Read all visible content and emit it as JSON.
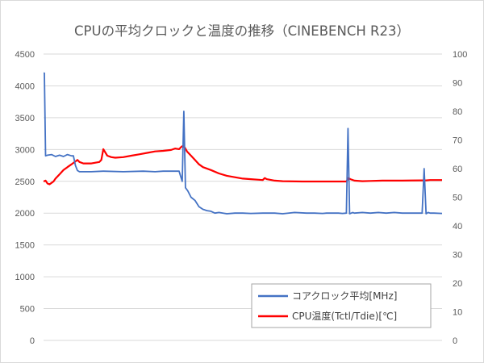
{
  "chart_data": {
    "type": "line",
    "title": "CPUの平均クロックと温度の推移（CINEBENCH R23）",
    "xlabel": "",
    "ylabel_left": "",
    "ylabel_right": "",
    "y_left": {
      "ylim": [
        0,
        4500
      ],
      "ticks": [
        "0",
        "500",
        "1000",
        "1500",
        "2000",
        "2500",
        "3000",
        "3500",
        "4000",
        "4500"
      ]
    },
    "y_right": {
      "ylim": [
        0,
        100
      ],
      "ticks": [
        "0",
        "10",
        "20",
        "30",
        "40",
        "50",
        "60",
        "70",
        "80",
        "90",
        "100"
      ]
    },
    "x_range": [
      0,
      100
    ],
    "grid": true,
    "legend_position": "bottom-right",
    "series": [
      {
        "name": "コアクロック平均[MHz]",
        "axis": "left",
        "color": "#4472c4",
        "x": [
          0,
          0.2,
          0.5,
          1,
          2,
          3,
          4,
          5,
          6,
          7,
          7.5,
          8,
          8.5,
          9,
          12,
          15,
          20,
          25,
          28,
          30,
          32,
          33,
          34,
          34.8,
          35.2,
          35.6,
          36.2,
          37,
          38,
          39,
          40,
          41,
          42,
          43,
          44,
          46,
          48,
          50,
          52,
          55,
          58,
          60,
          63,
          66,
          68,
          70,
          71,
          72,
          73,
          74,
          75,
          76,
          76.4,
          76.8,
          77.2,
          77.6,
          78,
          80,
          82,
          84,
          86,
          88,
          90,
          92,
          94,
          95,
          95.5,
          96,
          96.5,
          97,
          98,
          100
        ],
        "y": [
          4200,
          4200,
          2900,
          2910,
          2920,
          2890,
          2910,
          2890,
          2920,
          2900,
          2900,
          2750,
          2670,
          2650,
          2650,
          2660,
          2650,
          2660,
          2650,
          2660,
          2660,
          2660,
          2660,
          2500,
          3600,
          2400,
          2350,
          2250,
          2200,
          2100,
          2060,
          2040,
          2030,
          2000,
          2010,
          1990,
          2000,
          2000,
          1995,
          2000,
          2000,
          1990,
          2010,
          2000,
          2000,
          1995,
          2000,
          2000,
          2000,
          2000,
          1995,
          2000,
          3330,
          1990,
          2000,
          2010,
          2000,
          2010,
          2000,
          2010,
          2000,
          2010,
          2000,
          2000,
          2000,
          2000,
          2700,
          1990,
          2010,
          2000,
          2000,
          1995
        ]
      },
      {
        "name": "CPU温度(Tctl/Tdie)[℃]",
        "axis": "right",
        "color": "#ff0000",
        "x": [
          0,
          0.5,
          1,
          1.5,
          2,
          2.5,
          3,
          4,
          5,
          6,
          7,
          8,
          8.5,
          9,
          10,
          12,
          14,
          14.5,
          15,
          16,
          17,
          18,
          20,
          22,
          24,
          26,
          28,
          30,
          32,
          33,
          34,
          34.5,
          35,
          35.5,
          36,
          37,
          38,
          39,
          40,
          42,
          44,
          46,
          48,
          50,
          52,
          54,
          55,
          55.5,
          56,
          58,
          60,
          65,
          70,
          75,
          76,
          76.5,
          77,
          78,
          80,
          82,
          85,
          90,
          95,
          96,
          97,
          100
        ],
        "y": [
          55.5,
          55.8,
          54.8,
          54.5,
          55,
          55.5,
          56.5,
          58,
          59.5,
          60.5,
          61.5,
          62.5,
          63,
          62.3,
          61.8,
          61.8,
          62.3,
          63,
          66.8,
          64.5,
          64,
          63.8,
          64,
          64.5,
          65,
          65.5,
          66,
          66.2,
          66.5,
          67,
          66.8,
          67.5,
          68,
          67.2,
          66,
          64.5,
          63,
          61.5,
          60.5,
          59.5,
          58.3,
          57.5,
          57,
          56.5,
          56.3,
          56.1,
          56,
          56.7,
          56.3,
          55.8,
          55.6,
          55.5,
          55.5,
          55.5,
          55.5,
          56.7,
          56.3,
          55.8,
          55.6,
          55.7,
          55.8,
          55.8,
          55.9,
          55.9,
          56,
          56
        ]
      }
    ]
  }
}
